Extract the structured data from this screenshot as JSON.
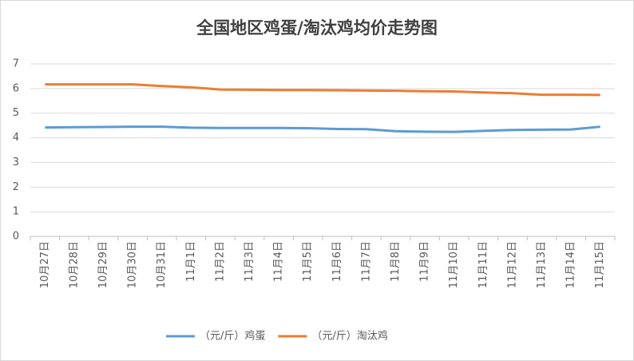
{
  "chart_data": {
    "type": "line",
    "title": "全国地区鸡蛋/淘汰鸡均价走势图",
    "categories": [
      "10月27日",
      "10月28日",
      "10月29日",
      "10月30日",
      "10月31日",
      "11月1日",
      "11月2日",
      "11月3日",
      "11月4日",
      "11月5日",
      "11月6日",
      "11月7日",
      "11月8日",
      "11月9日",
      "11月10日",
      "11月11日",
      "11月12日",
      "11月13日",
      "11月14日",
      "11月15日"
    ],
    "series": [
      {
        "name": "（元/斤）鸡蛋",
        "color": "#5b9bd5",
        "values": [
          4.42,
          4.43,
          4.44,
          4.45,
          4.45,
          4.41,
          4.4,
          4.4,
          4.4,
          4.39,
          4.36,
          4.35,
          4.27,
          4.25,
          4.24,
          4.28,
          4.32,
          4.33,
          4.34,
          4.45
        ]
      },
      {
        "name": "（元/斤）淘汰鸡",
        "color": "#ed7d31",
        "values": [
          6.17,
          6.17,
          6.17,
          6.17,
          6.1,
          6.05,
          5.96,
          5.95,
          5.94,
          5.94,
          5.93,
          5.92,
          5.91,
          5.89,
          5.88,
          5.84,
          5.81,
          5.75,
          5.75,
          5.74
        ]
      }
    ],
    "ylim": [
      0,
      7
    ],
    "yticks": [
      0,
      1,
      2,
      3,
      4,
      5,
      6,
      7
    ],
    "grid": true,
    "legend": "bottom"
  }
}
